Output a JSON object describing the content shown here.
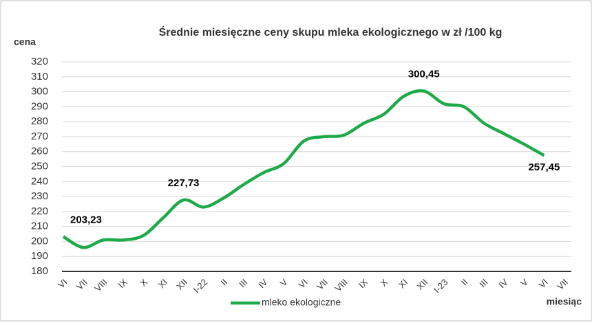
{
  "chart_data": {
    "type": "line",
    "title": "Średnie miesięczne ceny skupu mleka ekologicznego w zł /100 kg",
    "y_label": "cena",
    "x_label": "miesiąc",
    "categories": [
      "VI",
      "VII",
      "VIII",
      "IX",
      "X",
      "XI",
      "XII",
      "I-22",
      "II",
      "III",
      "IV",
      "V",
      "VI",
      "VII",
      "VIII",
      "IX",
      "X",
      "XI",
      "XII",
      "I-23",
      "II",
      "III",
      "IV",
      "V",
      "VI",
      "VII"
    ],
    "series": [
      {
        "name": "mleko ekologiczne",
        "color": "#1faa4a",
        "values": [
          203.23,
          196,
          201,
          201,
          204,
          216,
          227.73,
          223,
          229,
          238,
          246,
          252,
          267,
          270,
          271,
          279,
          285,
          297,
          300.45,
          292,
          290,
          279,
          272,
          265,
          257.45,
          null
        ],
        "value_labels": [
          "203,23",
          null,
          null,
          null,
          null,
          null,
          "227,73",
          null,
          null,
          null,
          null,
          null,
          null,
          null,
          null,
          null,
          null,
          null,
          "300,45",
          null,
          null,
          null,
          null,
          null,
          "257,45",
          null
        ]
      }
    ],
    "ylim": [
      180,
      320
    ],
    "yticks": [
      180,
      190,
      200,
      210,
      220,
      230,
      240,
      250,
      260,
      270,
      280,
      290,
      300,
      310,
      320
    ],
    "grid": true,
    "legend": "bottom"
  }
}
